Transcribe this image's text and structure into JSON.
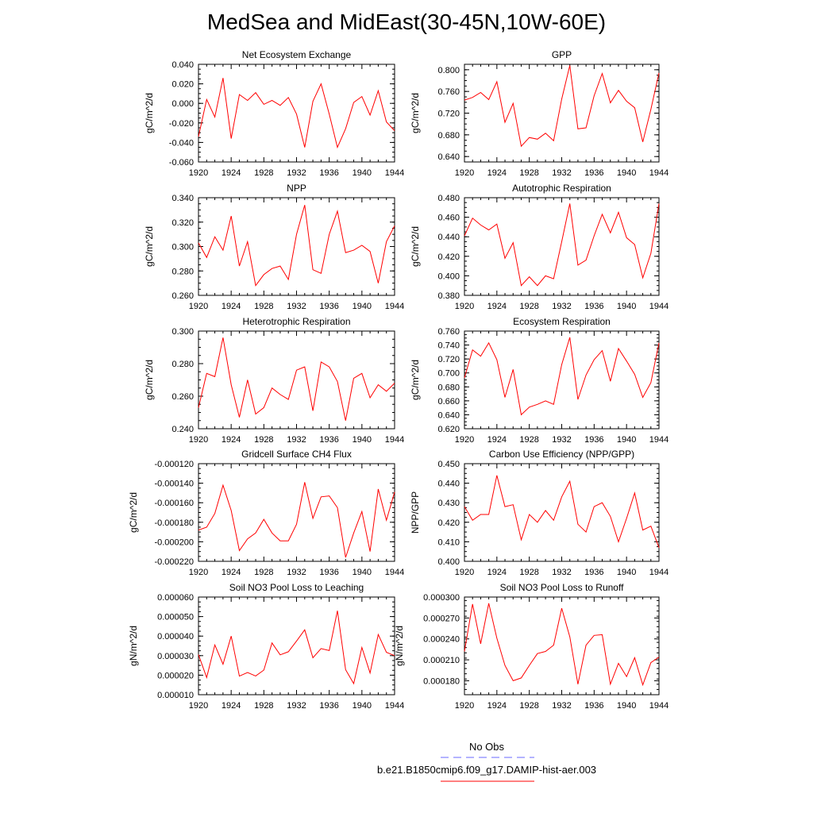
{
  "title": "MedSea and MidEast(30-45N,10W-60E)",
  "colors": {
    "model_line": "#ff0000",
    "obs_line": "#6a6aff",
    "axis": "#000000"
  },
  "legend": {
    "obs_label": "No Obs",
    "model_label": "b.e21.B1850cmip6.f09_g17.DAMIP-hist-aer.003"
  },
  "chart_data": [
    {
      "type": "line",
      "title": "Net Ecosystem Exchange",
      "ylabel": "gC/m^2/d",
      "xlabel": "",
      "xlim": [
        1920,
        1944
      ],
      "ylim": [
        -0.06,
        0.04
      ],
      "xticks": [
        1920,
        1924,
        1928,
        1932,
        1936,
        1940,
        1944
      ],
      "yticks": [
        "-0.060",
        "-0.040",
        "-0.020",
        "0.000",
        "0.020",
        "0.040"
      ],
      "ytick_values": [
        -0.06,
        -0.04,
        -0.02,
        0.0,
        0.02,
        0.04
      ],
      "x": [
        1920,
        1921,
        1922,
        1923,
        1924,
        1925,
        1926,
        1927,
        1928,
        1929,
        1930,
        1931,
        1932,
        1933,
        1934,
        1935,
        1936,
        1937,
        1938,
        1939,
        1940,
        1941,
        1942,
        1943,
        1944
      ],
      "series": [
        {
          "values": [
            -0.034,
            0.004,
            -0.014,
            0.026,
            -0.036,
            0.009,
            0.003,
            0.011,
            -0.001,
            0.003,
            -0.002,
            0.006,
            -0.011,
            -0.045,
            0.002,
            0.02,
            -0.011,
            -0.045,
            -0.026,
            0.001,
            0.007,
            -0.012,
            0.013,
            -0.019,
            -0.028
          ]
        }
      ]
    },
    {
      "type": "line",
      "title": "GPP",
      "ylabel": "gC/m^2/d",
      "xlabel": "",
      "xlim": [
        1920,
        1944
      ],
      "ylim": [
        0.63,
        0.81
      ],
      "xticks": [
        1920,
        1924,
        1928,
        1932,
        1936,
        1940,
        1944
      ],
      "yticks": [
        "0.640",
        "0.680",
        "0.720",
        "0.760",
        "0.800"
      ],
      "ytick_values": [
        0.64,
        0.68,
        0.72,
        0.76,
        0.8
      ],
      "x": [
        1920,
        1921,
        1922,
        1923,
        1924,
        1925,
        1926,
        1927,
        1928,
        1929,
        1930,
        1931,
        1932,
        1933,
        1934,
        1935,
        1936,
        1937,
        1938,
        1939,
        1940,
        1941,
        1942,
        1943,
        1944
      ],
      "series": [
        {
          "values": [
            0.744,
            0.749,
            0.758,
            0.745,
            0.778,
            0.703,
            0.738,
            0.659,
            0.675,
            0.672,
            0.683,
            0.669,
            0.746,
            0.808,
            0.691,
            0.693,
            0.752,
            0.793,
            0.739,
            0.762,
            0.742,
            0.73,
            0.667,
            0.727,
            0.794
          ]
        }
      ]
    },
    {
      "type": "line",
      "title": "NPP",
      "ylabel": "gC/m^2/d",
      "xlabel": "",
      "xlim": [
        1920,
        1944
      ],
      "ylim": [
        0.26,
        0.34
      ],
      "xticks": [
        1920,
        1924,
        1928,
        1932,
        1936,
        1940,
        1944
      ],
      "yticks": [
        "0.260",
        "0.280",
        "0.300",
        "0.320",
        "0.340"
      ],
      "ytick_values": [
        0.26,
        0.28,
        0.3,
        0.32,
        0.34
      ],
      "x": [
        1920,
        1921,
        1922,
        1923,
        1924,
        1925,
        1926,
        1927,
        1928,
        1929,
        1930,
        1931,
        1932,
        1933,
        1934,
        1935,
        1936,
        1937,
        1938,
        1939,
        1940,
        1941,
        1942,
        1943,
        1944
      ],
      "series": [
        {
          "values": [
            0.303,
            0.291,
            0.308,
            0.297,
            0.325,
            0.284,
            0.304,
            0.268,
            0.277,
            0.282,
            0.284,
            0.273,
            0.31,
            0.334,
            0.281,
            0.278,
            0.31,
            0.329,
            0.295,
            0.297,
            0.301,
            0.296,
            0.27,
            0.304,
            0.317
          ]
        }
      ]
    },
    {
      "type": "line",
      "title": "Autotrophic Respiration",
      "ylabel": "gC/m^2/d",
      "xlabel": "",
      "xlim": [
        1920,
        1944
      ],
      "ylim": [
        0.38,
        0.48
      ],
      "xticks": [
        1920,
        1924,
        1928,
        1932,
        1936,
        1940,
        1944
      ],
      "yticks": [
        "0.380",
        "0.400",
        "0.420",
        "0.440",
        "0.460",
        "0.480"
      ],
      "ytick_values": [
        0.38,
        0.4,
        0.42,
        0.44,
        0.46,
        0.48
      ],
      "x": [
        1920,
        1921,
        1922,
        1923,
        1924,
        1925,
        1926,
        1927,
        1928,
        1929,
        1930,
        1931,
        1932,
        1933,
        1934,
        1935,
        1936,
        1937,
        1938,
        1939,
        1940,
        1941,
        1942,
        1943,
        1944
      ],
      "series": [
        {
          "values": [
            0.441,
            0.459,
            0.452,
            0.447,
            0.453,
            0.418,
            0.434,
            0.39,
            0.399,
            0.39,
            0.4,
            0.397,
            0.435,
            0.474,
            0.411,
            0.416,
            0.441,
            0.463,
            0.444,
            0.465,
            0.439,
            0.432,
            0.398,
            0.423,
            0.474
          ]
        }
      ]
    },
    {
      "type": "line",
      "title": "Heterotrophic Respiration",
      "ylabel": "gC/m^2/d",
      "xlabel": "",
      "xlim": [
        1920,
        1944
      ],
      "ylim": [
        0.24,
        0.3
      ],
      "xticks": [
        1920,
        1924,
        1928,
        1932,
        1936,
        1940,
        1944
      ],
      "yticks": [
        "0.240",
        "0.260",
        "0.280",
        "0.300"
      ],
      "ytick_values": [
        0.24,
        0.26,
        0.28,
        0.3
      ],
      "x": [
        1920,
        1921,
        1922,
        1923,
        1924,
        1925,
        1926,
        1927,
        1928,
        1929,
        1930,
        1931,
        1932,
        1933,
        1934,
        1935,
        1936,
        1937,
        1938,
        1939,
        1940,
        1941,
        1942,
        1943,
        1944
      ],
      "series": [
        {
          "values": [
            0.253,
            0.274,
            0.272,
            0.296,
            0.267,
            0.247,
            0.27,
            0.249,
            0.253,
            0.265,
            0.261,
            0.258,
            0.276,
            0.278,
            0.251,
            0.281,
            0.278,
            0.269,
            0.245,
            0.271,
            0.274,
            0.259,
            0.267,
            0.263,
            0.268
          ]
        }
      ]
    },
    {
      "type": "line",
      "title": "Ecosystem Respiration",
      "ylabel": "gC/m^2/d",
      "xlabel": "",
      "xlim": [
        1920,
        1944
      ],
      "ylim": [
        0.62,
        0.76
      ],
      "xticks": [
        1920,
        1924,
        1928,
        1932,
        1936,
        1940,
        1944
      ],
      "yticks": [
        "0.620",
        "0.640",
        "0.660",
        "0.680",
        "0.700",
        "0.720",
        "0.740",
        "0.760"
      ],
      "ytick_values": [
        0.62,
        0.64,
        0.66,
        0.68,
        0.7,
        0.72,
        0.74,
        0.76
      ],
      "x": [
        1920,
        1921,
        1922,
        1923,
        1924,
        1925,
        1926,
        1927,
        1928,
        1929,
        1930,
        1931,
        1932,
        1933,
        1934,
        1935,
        1936,
        1937,
        1938,
        1939,
        1940,
        1941,
        1942,
        1943,
        1944
      ],
      "series": [
        {
          "values": [
            0.693,
            0.733,
            0.724,
            0.743,
            0.719,
            0.665,
            0.705,
            0.64,
            0.651,
            0.655,
            0.66,
            0.655,
            0.712,
            0.751,
            0.662,
            0.697,
            0.719,
            0.732,
            0.688,
            0.735,
            0.717,
            0.698,
            0.665,
            0.686,
            0.743
          ]
        }
      ]
    },
    {
      "type": "line",
      "title": "Gridcell Surface CH4 Flux",
      "ylabel": "gC/m^2/d",
      "xlabel": "",
      "xlim": [
        1920,
        1944
      ],
      "ylim": [
        -0.00022,
        -0.00012
      ],
      "xticks": [
        1920,
        1924,
        1928,
        1932,
        1936,
        1940,
        1944
      ],
      "yticks": [
        "-0.000220",
        "-0.000200",
        "-0.000180",
        "-0.000160",
        "-0.000140",
        "-0.000120"
      ],
      "ytick_values": [
        -0.00022,
        -0.0002,
        -0.00018,
        -0.00016,
        -0.00014,
        -0.00012
      ],
      "x": [
        1920,
        1921,
        1922,
        1923,
        1924,
        1925,
        1926,
        1927,
        1928,
        1929,
        1930,
        1931,
        1932,
        1933,
        1934,
        1935,
        1936,
        1937,
        1938,
        1939,
        1940,
        1941,
        1942,
        1943,
        1944
      ],
      "series": [
        {
          "values": [
            -0.000188,
            -0.000185,
            -0.000171,
            -0.000142,
            -0.000168,
            -0.000209,
            -0.000197,
            -0.000191,
            -0.000177,
            -0.000191,
            -0.000199,
            -0.000199,
            -0.000182,
            -0.000139,
            -0.000176,
            -0.000154,
            -0.000153,
            -0.000165,
            -0.000216,
            -0.000191,
            -0.000169,
            -0.00021,
            -0.000146,
            -0.000178,
            -0.000149
          ]
        }
      ]
    },
    {
      "type": "line",
      "title": "Carbon Use Efficiency (NPP/GPP)",
      "ylabel": "NPP/GPP",
      "xlabel": "",
      "xlim": [
        1920,
        1944
      ],
      "ylim": [
        0.4,
        0.45
      ],
      "xticks": [
        1920,
        1924,
        1928,
        1932,
        1936,
        1940,
        1944
      ],
      "yticks": [
        "0.400",
        "0.410",
        "0.420",
        "0.430",
        "0.440",
        "0.450"
      ],
      "ytick_values": [
        0.4,
        0.41,
        0.42,
        0.43,
        0.44,
        0.45
      ],
      "x": [
        1920,
        1921,
        1922,
        1923,
        1924,
        1925,
        1926,
        1927,
        1928,
        1929,
        1930,
        1931,
        1932,
        1933,
        1934,
        1935,
        1936,
        1937,
        1938,
        1939,
        1940,
        1941,
        1942,
        1943,
        1944
      ],
      "series": [
        {
          "values": [
            0.428,
            0.421,
            0.424,
            0.424,
            0.444,
            0.428,
            0.429,
            0.411,
            0.424,
            0.42,
            0.426,
            0.421,
            0.433,
            0.441,
            0.419,
            0.415,
            0.428,
            0.43,
            0.423,
            0.41,
            0.422,
            0.435,
            0.416,
            0.418,
            0.407
          ]
        }
      ]
    },
    {
      "type": "line",
      "title": "Soil NO3 Pool Loss to Leaching",
      "ylabel": "gN/m^2/d",
      "xlabel": "",
      "xlim": [
        1920,
        1944
      ],
      "ylim": [
        1e-05,
        6e-05
      ],
      "xticks": [
        1920,
        1924,
        1928,
        1932,
        1936,
        1940,
        1944
      ],
      "yticks": [
        "0.000010",
        "0.000020",
        "0.000030",
        "0.000040",
        "0.000050",
        "0.000060"
      ],
      "ytick_values": [
        1e-05,
        2e-05,
        3e-05,
        4e-05,
        5e-05,
        6e-05
      ],
      "x": [
        1920,
        1921,
        1922,
        1923,
        1924,
        1925,
        1926,
        1927,
        1928,
        1929,
        1930,
        1931,
        1932,
        1933,
        1934,
        1935,
        1936,
        1937,
        1938,
        1939,
        1940,
        1941,
        1942,
        1943,
        1944
      ],
      "series": [
        {
          "values": [
            3.05e-05,
            1.88e-05,
            3.55e-05,
            2.56e-05,
            4e-05,
            1.95e-05,
            2.14e-05,
            1.96e-05,
            2.26e-05,
            3.65e-05,
            3.04e-05,
            3.2e-05,
            3.75e-05,
            4.32e-05,
            2.89e-05,
            3.36e-05,
            3.26e-05,
            5.3e-05,
            2.28e-05,
            1.57e-05,
            3.42e-05,
            2.11e-05,
            4.08e-05,
            3.17e-05,
            3e-05
          ]
        }
      ]
    },
    {
      "type": "line",
      "title": "Soil NO3 Pool Loss to Runoff",
      "ylabel": "gN/m^2/d",
      "xlabel": "",
      "xlim": [
        1920,
        1944
      ],
      "ylim": [
        0.00016,
        0.0003
      ],
      "xticks": [
        1920,
        1924,
        1928,
        1932,
        1936,
        1940,
        1944
      ],
      "yticks": [
        "0.000180",
        "0.000210",
        "0.000240",
        "0.000270",
        "0.000300"
      ],
      "ytick_values": [
        0.00018,
        0.00021,
        0.00024,
        0.00027,
        0.0003
      ],
      "x": [
        1920,
        1921,
        1922,
        1923,
        1924,
        1925,
        1926,
        1927,
        1928,
        1929,
        1930,
        1931,
        1932,
        1933,
        1934,
        1935,
        1936,
        1937,
        1938,
        1939,
        1940,
        1941,
        1942,
        1943,
        1944
      ],
      "series": [
        {
          "values": [
            0.000222,
            0.00029,
            0.000233,
            0.000291,
            0.000241,
            0.000202,
            0.00018,
            0.000184,
            0.000202,
            0.000219,
            0.000222,
            0.000231,
            0.000284,
            0.000243,
            0.000175,
            0.000231,
            0.000245,
            0.000246,
            0.000175,
            0.000205,
            0.000186,
            0.000213,
            0.000174,
            0.000206,
            0.000214
          ]
        }
      ]
    }
  ]
}
